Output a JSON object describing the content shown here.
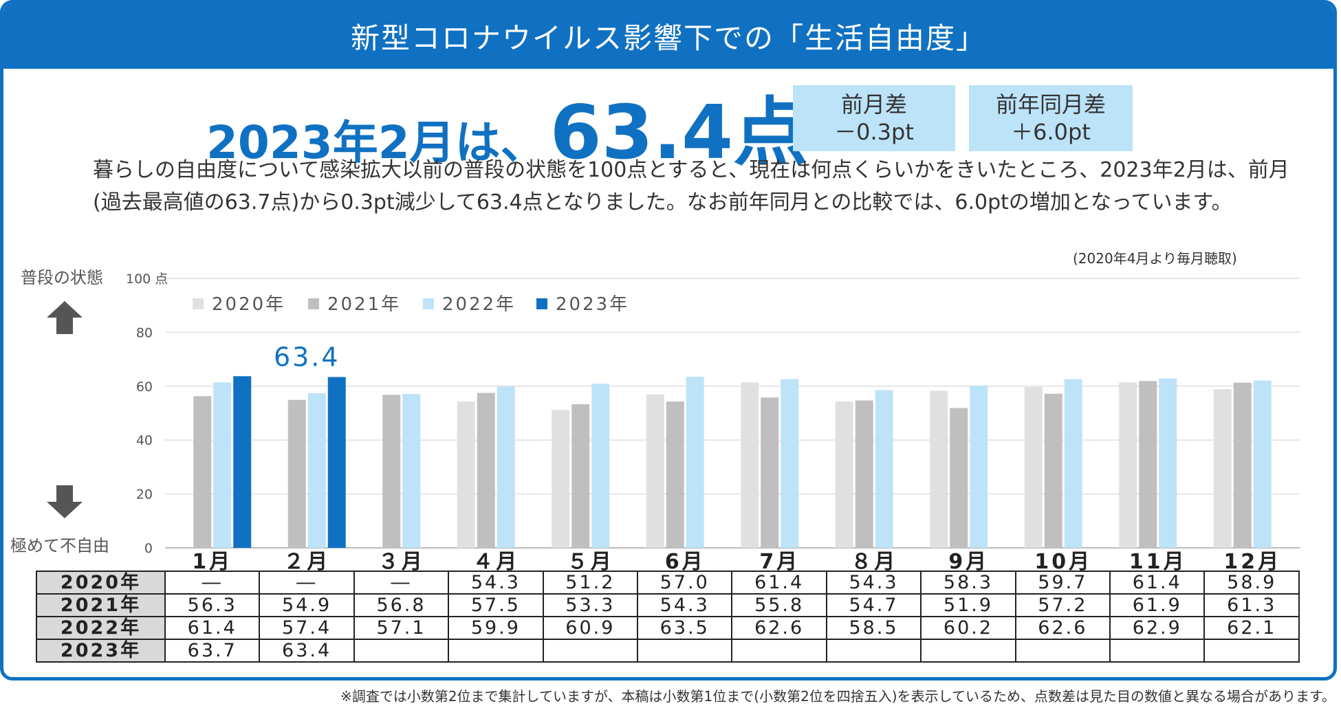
{
  "title": "新型コロナウイルス影響下での「生活自由度」",
  "headline": {
    "prefix": "2023年2月は、",
    "score": "63.4点"
  },
  "diff_prev_month": {
    "label": "前月差",
    "value": "－0.3pt"
  },
  "diff_prev_year": {
    "label": "前年同月差",
    "value": "＋6.0pt"
  },
  "description": "暮らしの自由度について感染拡大以前の普段の状態を100点とすると、現在は何点くらいかをきいたところ、2023年2月は、前月(過去最高値の63.7点)から0.3pt減少して63.4点となりました。なお前年同月との比較では、6.0ptの増加となっています。",
  "survey_note": "(2020年4月より毎月聴取)",
  "axis_top_label": "普段の状態",
  "axis_bottom_label": "極めて不自由",
  "footnote": "※調査では小数第2位まで集計していますが、本稿は小数第1位まで(小数第2位を四捨五入)を表示しているため、点数差は見た目の数値と異なる場合があります。",
  "chart_data": {
    "type": "bar",
    "title": "新型コロナウイルス影響下での「生活自由度」",
    "categories": [
      "1月",
      "２月",
      "３月",
      "４月",
      "５月",
      "6月",
      "7月",
      "８月",
      "9月",
      "10月",
      "11月",
      "12月"
    ],
    "series": [
      {
        "name": "2020年",
        "color": "#e0e0e0",
        "values": [
          null,
          null,
          null,
          54.3,
          51.2,
          57.0,
          61.4,
          54.3,
          58.3,
          59.7,
          61.4,
          58.9
        ]
      },
      {
        "name": "2021年",
        "color": "#bfbfbf",
        "values": [
          56.3,
          54.9,
          56.8,
          57.5,
          53.3,
          54.3,
          55.8,
          54.7,
          51.9,
          57.2,
          61.9,
          61.3
        ]
      },
      {
        "name": "2022年",
        "color": "#bde3f8",
        "values": [
          61.4,
          57.4,
          57.1,
          59.9,
          60.9,
          63.5,
          62.6,
          58.5,
          60.2,
          62.6,
          62.9,
          62.1
        ]
      },
      {
        "name": "2023年",
        "color": "#1071c2",
        "values": [
          63.7,
          63.4,
          null,
          null,
          null,
          null,
          null,
          null,
          null,
          null,
          null,
          null
        ]
      }
    ],
    "yticks": [
      "0",
      "20",
      "40",
      "60",
      "80",
      "100 点"
    ],
    "ylim": [
      0,
      100
    ],
    "annotation": "63.4",
    "legend": "top-left"
  },
  "table": {
    "rows": [
      {
        "label": "2020年",
        "cells": [
          "―",
          "―",
          "―",
          "54.3",
          "51.2",
          "57.0",
          "61.4",
          "54.3",
          "58.3",
          "59.7",
          "61.4",
          "58.9"
        ]
      },
      {
        "label": "2021年",
        "cells": [
          "56.3",
          "54.9",
          "56.8",
          "57.5",
          "53.3",
          "54.3",
          "55.8",
          "54.7",
          "51.9",
          "57.2",
          "61.9",
          "61.3"
        ]
      },
      {
        "label": "2022年",
        "cells": [
          "61.4",
          "57.4",
          "57.1",
          "59.9",
          "60.9",
          "63.5",
          "62.6",
          "58.5",
          "60.2",
          "62.6",
          "62.9",
          "62.1"
        ]
      },
      {
        "label": "2023年",
        "cells": [
          "63.7",
          "63.4",
          "",
          "",
          "",
          "",
          "",
          "",
          "",
          "",
          "",
          ""
        ]
      }
    ]
  }
}
